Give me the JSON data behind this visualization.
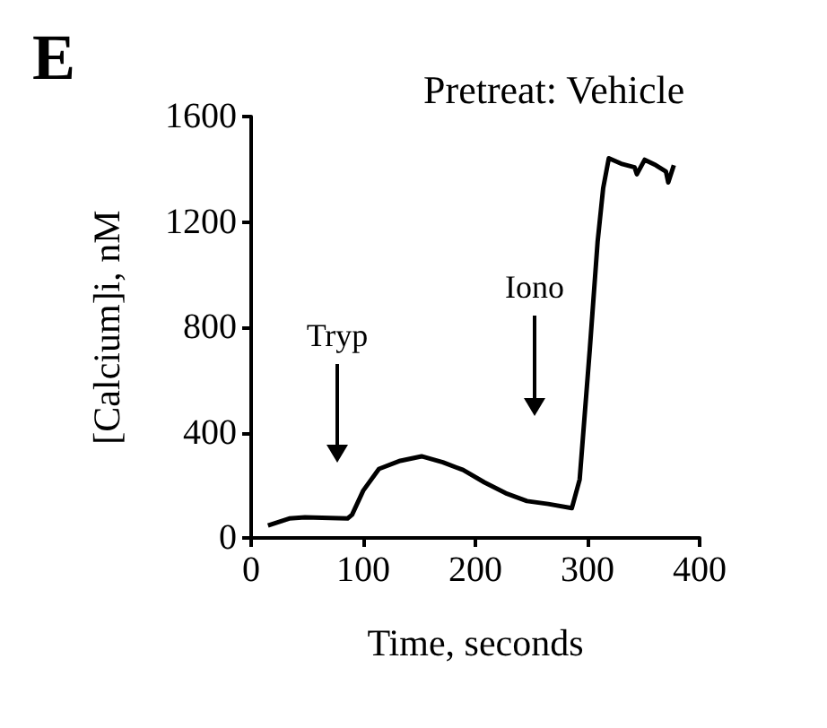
{
  "chart_data": {
    "type": "line",
    "title": "Pretreat: Vehicle",
    "xlabel": "Time, seconds",
    "ylabel": "[Calcium]i, nM",
    "annotations": [
      "E",
      "Tryp",
      "Iono"
    ],
    "x": [
      15,
      34,
      48,
      86,
      90,
      100,
      114,
      133,
      152,
      171,
      189,
      208,
      227,
      246,
      265,
      286,
      293,
      302,
      309,
      314,
      319,
      330,
      342,
      344,
      351,
      361,
      370,
      372,
      377
    ],
    "series": [
      {
        "color": "#000000",
        "values": [
          47,
          74,
          78,
          74,
          88,
          180,
          262,
          293,
          310,
          287,
          258,
          211,
          170,
          140,
          129,
          113,
          222,
          714,
          1124,
          1329,
          1442,
          1421,
          1407,
          1381,
          1436,
          1415,
          1391,
          1350,
          1415
        ]
      }
    ],
    "xlim": [
      0,
      400
    ],
    "xticks": [
      0,
      100,
      200,
      300,
      400
    ],
    "ylim": [
      0,
      1600
    ],
    "yticks": [
      0,
      400,
      800,
      1200,
      1600
    ],
    "marker": "none",
    "line_style": "solid"
  }
}
